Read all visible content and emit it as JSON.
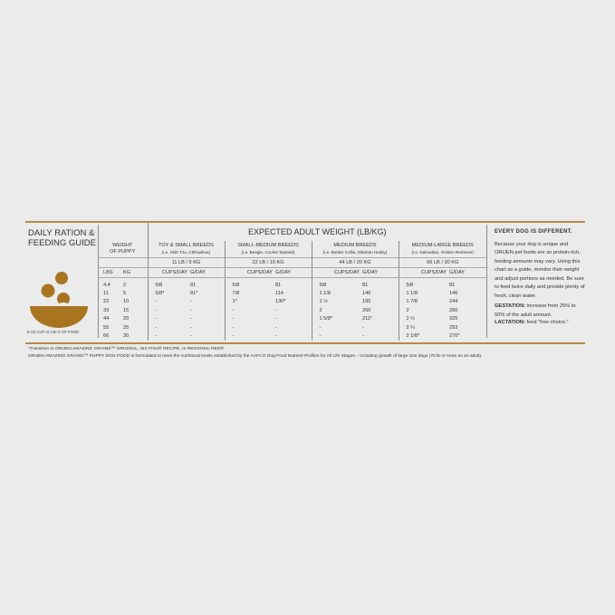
{
  "title_lines": [
    "DAILY RATION &",
    "FEEDING GUIDE"
  ],
  "cup_note": "8 OZ CUP IS 130 G OF FOOD",
  "colors": {
    "accent": "#b88a45",
    "bowl": "#a8741f",
    "background": "#ebebeb"
  },
  "table": {
    "main_header": "EXPECTED ADULT WEIGHT (LB/KG)",
    "weight_header": "WEIGHT OF PUPPY",
    "weight_units": [
      "LBS",
      "KG"
    ],
    "breeds": [
      {
        "name": "TOY & SMALL BREEDS",
        "example": "(i.e. Shih Tzu, Chihuahua)",
        "weight": "11 LB / 5 KG"
      },
      {
        "name": "SMALL-MEDIUM BREEDS",
        "example": "(i.e. Beagle, Cocker Spaniel)",
        "weight": "22 LB / 10 KG"
      },
      {
        "name": "MEDIUM BREEDS",
        "example": "(i.e. Border Collie, Siberian Husky)",
        "weight": "44 LB / 20 KG"
      },
      {
        "name": "MEDIUM-LARGE BREEDS",
        "example": "(i.e. Dalmatian, Golden Retriever)",
        "weight": "66 LB / 30 KG"
      }
    ],
    "col_labels": [
      "CUPS/DAY",
      "G/DAY"
    ],
    "rows": [
      [
        "4.4",
        "2",
        "5/8",
        "81",
        "5/8",
        "81",
        "5/8",
        "81",
        "5/8",
        "81"
      ],
      [
        "11",
        "5",
        "5/8*",
        "81*",
        "7/8",
        "114",
        "1 1/8",
        "146",
        "1 1/8",
        "146"
      ],
      [
        "22",
        "10",
        "-",
        "-",
        "1*",
        "130*",
        "1 ½",
        "195",
        "1 7/8",
        "244"
      ],
      [
        "33",
        "15",
        "-",
        "-",
        "-",
        "-",
        "2",
        "260",
        "2",
        "260"
      ],
      [
        "44",
        "20",
        "-",
        "-",
        "-",
        "-",
        "1 5/8*",
        "211*",
        "2 ½",
        "325"
      ],
      [
        "55",
        "25",
        "-",
        "-",
        "-",
        "-",
        "-",
        "-",
        "2 ¼",
        "293"
      ],
      [
        "66",
        "30",
        "-",
        "-",
        "-",
        "-",
        "-",
        "-",
        "2 1/8*",
        "276*"
      ]
    ]
  },
  "side": {
    "heading": "EVERY DOG IS DIFFERENT.",
    "body": "Because your dog is unique and ORIJEN pet foods are so protein-rich, feeding amounts may vary. Using this chart as a guide, monitor their weight and adjust portions as needed. Be sure to feed twice daily and provide plenty of fresh, clean water.",
    "gestation_label": "GESTATION:",
    "gestation_text": " increase from 25% to 50% of the adult amount.",
    "lactation_label": "LACTATION:",
    "lactation_text": " feed \"free choice.\""
  },
  "footnotes": [
    "*Transition to ORIJEN AMAZING GRAINS™ ORIGINAL, SIX FISH® RECIPE, or REGIONAL RED®.",
    "ORIJEN AMAZING GRAINS™ PUPPY DOG FOOD is formulated to meet the nutritional levels established by the AAFCO Dog Food Nutrient Profiles for All Life Stages – including growth of large size dogs (70 lb or more as an adult)."
  ]
}
